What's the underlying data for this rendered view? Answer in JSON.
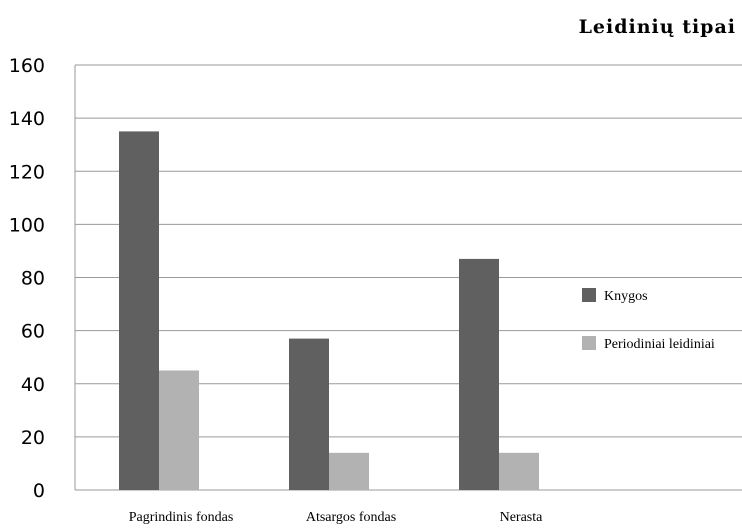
{
  "chart_data": {
    "type": "bar",
    "title": "Leidinių tipai",
    "categories": [
      "Pagrindinis fondas",
      "Atsargos fondas",
      "Nerasta"
    ],
    "series": [
      {
        "name": "Knygos",
        "values": [
          135,
          57,
          87
        ],
        "color": "#606060"
      },
      {
        "name": "Periodiniai leidiniai",
        "values": [
          45,
          14,
          14
        ],
        "color": "#b2b2b2"
      }
    ],
    "ylim": [
      0,
      160
    ],
    "yticks": [
      0,
      20,
      40,
      60,
      80,
      100,
      120,
      140,
      160
    ],
    "grid": true,
    "legend": "right",
    "xlabel": "",
    "ylabel": ""
  }
}
